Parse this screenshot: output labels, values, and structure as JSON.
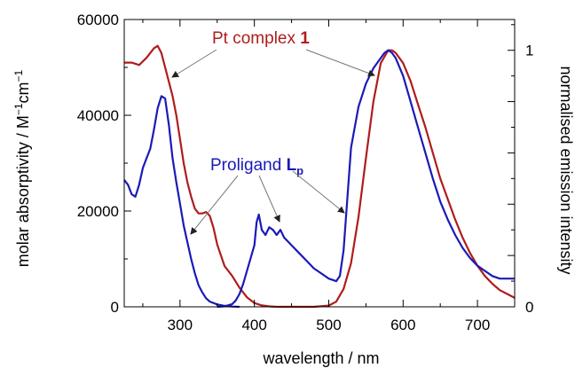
{
  "chart_data": {
    "type": "line",
    "xlabel": "wavelength / nm",
    "ylabel_left": {
      "main": "molar absorptivity / M",
      "sup1": "−1",
      "mid": "cm",
      "sup2": "−1"
    },
    "ylabel_right": "normalised emission intensity",
    "xlim": [
      225,
      750
    ],
    "ylim_left": [
      0,
      60000
    ],
    "ylim_right": [
      0,
      1.12
    ],
    "x_ticks": [
      300,
      400,
      500,
      600,
      700
    ],
    "y_left_ticks": [
      0,
      20000,
      40000,
      60000
    ],
    "y_right_ticks": [
      0,
      1
    ],
    "colors": {
      "pt": "#b01c1c",
      "lp": "#1a1ab8",
      "arrow": "#555555"
    },
    "annotations": {
      "pt": {
        "text": "Pt complex ",
        "bold": "1"
      },
      "lp": {
        "text": "Proligand ",
        "bold": "L",
        "sub": "p"
      }
    },
    "series": [
      {
        "name": "Pt complex 1",
        "axis": "left",
        "color": "#b01c1c",
        "x": [
          225,
          235,
          245,
          255,
          265,
          270,
          275,
          280,
          285,
          290,
          295,
          300,
          305,
          310,
          315,
          320,
          325,
          330,
          335,
          340,
          345,
          350,
          360,
          370,
          380,
          390,
          400,
          410,
          420,
          430
        ],
        "y": [
          51000,
          51000,
          50500,
          52000,
          54000,
          54500,
          53000,
          50000,
          47000,
          44000,
          40000,
          35000,
          30000,
          26000,
          23000,
          20500,
          19500,
          19500,
          19800,
          19000,
          16500,
          13000,
          8500,
          6500,
          4000,
          2000,
          800,
          300,
          100,
          0
        ]
      },
      {
        "name": "Proligand Lp",
        "axis": "left",
        "color": "#1a1ab8",
        "x": [
          225,
          230,
          235,
          240,
          245,
          250,
          255,
          260,
          265,
          270,
          275,
          280,
          285,
          290,
          295,
          300,
          305,
          310,
          315,
          320,
          325,
          330,
          335,
          340,
          350,
          360,
          370,
          380
        ],
        "y": [
          26500,
          25500,
          23500,
          23000,
          25500,
          29000,
          31000,
          33000,
          37000,
          41500,
          44000,
          43500,
          38000,
          31000,
          26000,
          21500,
          17000,
          13500,
          10000,
          7000,
          4500,
          3000,
          1800,
          1100,
          500,
          200,
          50,
          0
        ]
      },
      {
        "name": "Pt complex 1 emission",
        "axis": "right",
        "color": "#b01c1c",
        "x": [
          430,
          480,
          500,
          510,
          520,
          530,
          540,
          550,
          560,
          570,
          580,
          585,
          590,
          600,
          610,
          620,
          630,
          640,
          650,
          660,
          670,
          680,
          690,
          700,
          710,
          720,
          730,
          740,
          750
        ],
        "y": [
          0,
          0,
          0.005,
          0.02,
          0.07,
          0.17,
          0.35,
          0.58,
          0.8,
          0.95,
          1.0,
          1.0,
          0.99,
          0.95,
          0.88,
          0.79,
          0.7,
          0.6,
          0.5,
          0.42,
          0.34,
          0.27,
          0.21,
          0.16,
          0.12,
          0.09,
          0.065,
          0.05,
          0.035
        ]
      },
      {
        "name": "Proligand Lp emission",
        "axis": "right",
        "color": "#1a1ab8",
        "x": [
          350,
          360,
          370,
          375,
          380,
          385,
          390,
          395,
          400,
          403,
          406,
          410,
          415,
          420,
          425,
          430,
          435,
          440,
          450,
          460,
          470,
          480,
          490,
          500,
          510,
          515,
          520,
          525,
          530,
          540,
          550,
          560,
          570,
          575,
          580,
          585,
          590,
          600,
          610,
          620,
          630,
          640,
          650,
          660,
          670,
          680,
          690,
          700,
          710,
          720,
          730,
          740,
          750
        ],
        "y": [
          0,
          0.002,
          0.01,
          0.025,
          0.05,
          0.09,
          0.14,
          0.19,
          0.24,
          0.33,
          0.36,
          0.3,
          0.28,
          0.31,
          0.3,
          0.28,
          0.3,
          0.27,
          0.24,
          0.21,
          0.18,
          0.15,
          0.13,
          0.11,
          0.1,
          0.12,
          0.22,
          0.42,
          0.62,
          0.78,
          0.87,
          0.93,
          0.97,
          0.99,
          1.0,
          0.99,
          0.97,
          0.9,
          0.8,
          0.7,
          0.6,
          0.5,
          0.41,
          0.34,
          0.28,
          0.23,
          0.19,
          0.16,
          0.14,
          0.12,
          0.11,
          0.11,
          0.11
        ]
      }
    ]
  }
}
